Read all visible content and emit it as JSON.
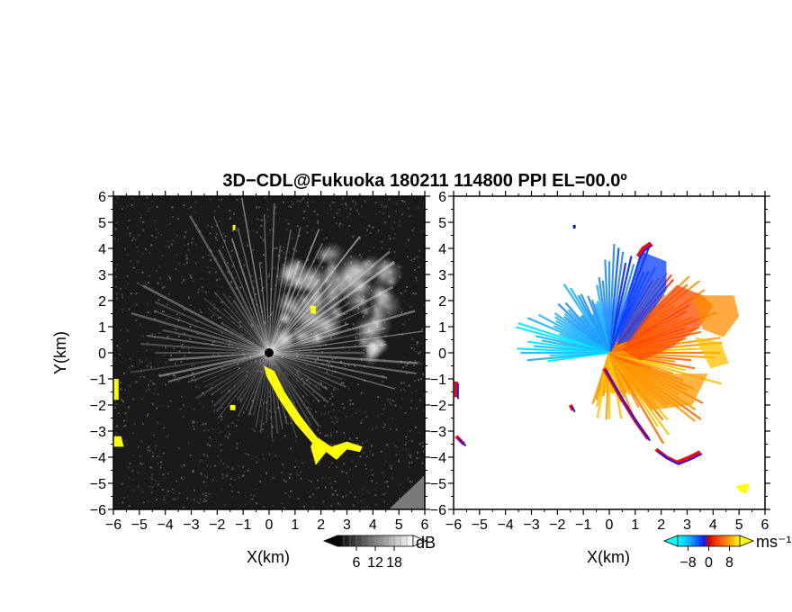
{
  "chart_data": {
    "title": "3D−CDL@Fukuoka 180211 114800 PPI EL=00.0º",
    "panels": [
      {
        "id": "reflectivity",
        "type": "heatmap",
        "xlabel": "X(km)",
        "ylabel": "Y(km)",
        "xlim": [
          -6,
          6
        ],
        "ylim": [
          -6,
          6
        ],
        "xticks": [
          "−6",
          "−5",
          "−4",
          "−3",
          "−2",
          "−1",
          "0",
          "1",
          "2",
          "3",
          "4",
          "5",
          "6"
        ],
        "yticks": [
          "−6",
          "−5",
          "−4",
          "−3",
          "−2",
          "−1",
          "0",
          "1",
          "2",
          "3",
          "4",
          "5",
          "6"
        ],
        "background": "#1a1a1a",
        "ground_clutter_color": "#ffff00",
        "colorbar": {
          "unit": "dB",
          "ticks": [
            "6",
            "12",
            "18"
          ],
          "range": [
            0,
            24
          ]
        }
      },
      {
        "id": "doppler",
        "type": "heatmap",
        "xlabel": "X(km)",
        "ylabel": "",
        "xlim": [
          -6,
          6
        ],
        "ylim": [
          -6,
          6
        ],
        "xticks": [
          "−6",
          "−5",
          "−4",
          "−3",
          "−2",
          "−1",
          "0",
          "1",
          "2",
          "3",
          "4",
          "5",
          "6"
        ],
        "yticks": [
          "−6",
          "−5",
          "−4",
          "−3",
          "−2",
          "−1",
          "0",
          "1",
          "2",
          "3",
          "4",
          "5",
          "6"
        ],
        "background": "#ffffff",
        "ground_clutter_color": "#ffff00",
        "colorbar": {
          "unit": "ms⁻¹",
          "ticks": [
            "−8",
            "0",
            "8"
          ],
          "range": [
            -12,
            12
          ]
        }
      }
    ]
  }
}
